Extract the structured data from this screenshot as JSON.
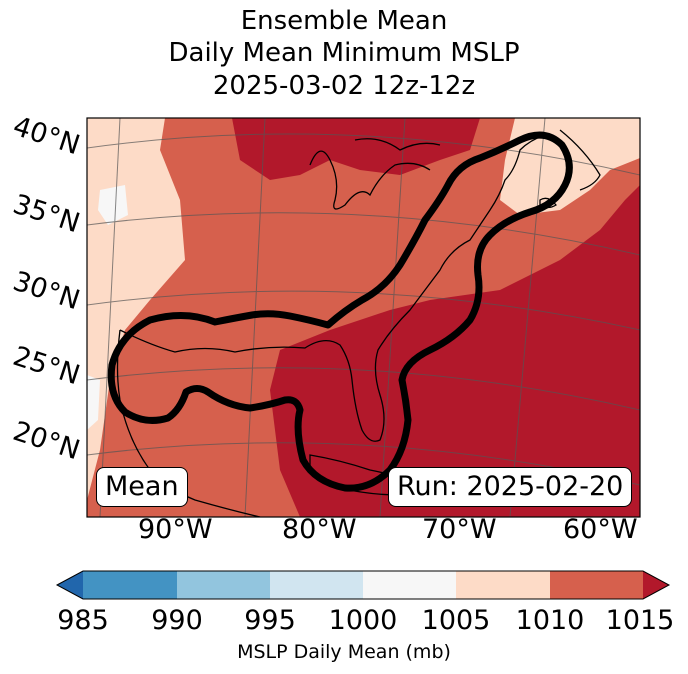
{
  "title": {
    "line1": "Ensemble Mean",
    "line2": "Daily Mean Minimum MSLP",
    "line3": "2025-03-02 12z-12z"
  },
  "map": {
    "lat_labels": [
      "40°N",
      "35°N",
      "30°N",
      "25°N",
      "20°N"
    ],
    "lon_labels": [
      "90°W",
      "80°W",
      "70°W",
      "60°W"
    ],
    "label_left": "Mean",
    "label_right": "Run: 2025-02-20"
  },
  "colorbar": {
    "ticks": [
      "985",
      "990",
      "995",
      "1000",
      "1005",
      "1010",
      "1015"
    ],
    "label": "MSLP Daily Mean (mb)",
    "colors": [
      "#2166ac",
      "#4393c3",
      "#92c5de",
      "#d1e5f0",
      "#f7f7f7",
      "#fddbc7",
      "#d6604d",
      "#b2182b"
    ]
  }
}
